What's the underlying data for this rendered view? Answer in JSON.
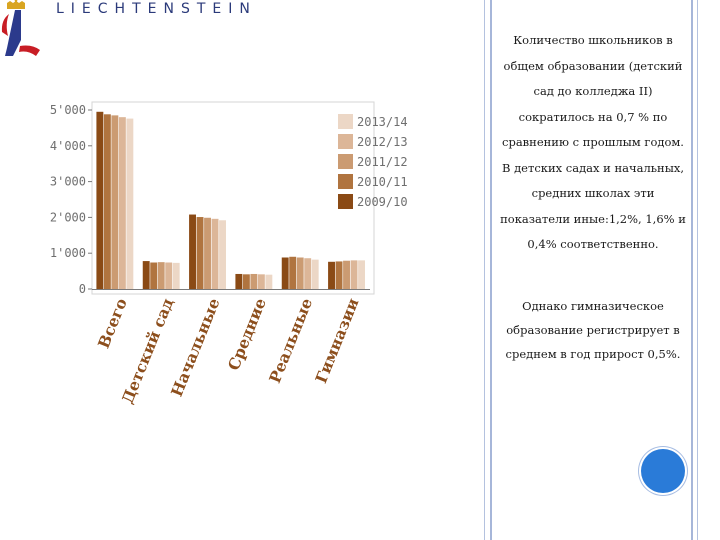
{
  "header": {
    "brand": "LIECHTENSTEIN",
    "logo_icon": "liechtenstein-crown-l-logo-icon",
    "brand_color": "#2b3a7a"
  },
  "text": {
    "paragraph1": "Количество школьников в общем образовании (детский сад до колледжа II) сократилось на 0,7 % по сравнению с прошлым годом. В детских садах и начальных, средних школах эти показатели иные:1,2%, 1,6% и 0,4% соответственно.",
    "paragraph2": "Однако гимназическое образование регистрирует в среднем в год прирост 0,5%."
  },
  "decor": {
    "circle_color": "#2a7bd8",
    "frame_color": "#a6b6d9"
  },
  "chart_data": {
    "type": "bar",
    "categories": [
      "Всего",
      "Детский сад",
      "Начальные",
      "Средние",
      "Реальные",
      "Гимназии"
    ],
    "series": [
      {
        "name": "2009/10",
        "color": "#8a4a15",
        "values": [
          4950,
          780,
          2080,
          420,
          880,
          760
        ]
      },
      {
        "name": "2010/11",
        "color": "#b0743f",
        "values": [
          4880,
          740,
          2010,
          410,
          900,
          770
        ]
      },
      {
        "name": "2011/12",
        "color": "#cb9b72",
        "values": [
          4850,
          750,
          1990,
          420,
          880,
          790
        ]
      },
      {
        "name": "2012/13",
        "color": "#dcb698",
        "values": [
          4800,
          740,
          1960,
          410,
          860,
          800
        ]
      },
      {
        "name": "2013/14",
        "color": "#ecd7c6",
        "values": [
          4760,
          730,
          1920,
          400,
          820,
          800
        ]
      }
    ],
    "yticks": [
      "5'000",
      "4'000",
      "3'000",
      "2'000",
      "1'000",
      "0"
    ],
    "yvalues": [
      5000,
      4000,
      3000,
      2000,
      1000,
      0
    ],
    "ylim": [
      0,
      5000
    ],
    "legend_order": [
      "2013/14",
      "2012/13",
      "2011/12",
      "2010/11",
      "2009/10"
    ],
    "legend_position": "right",
    "grid": false,
    "title": "",
    "xlabel": "",
    "ylabel": ""
  }
}
